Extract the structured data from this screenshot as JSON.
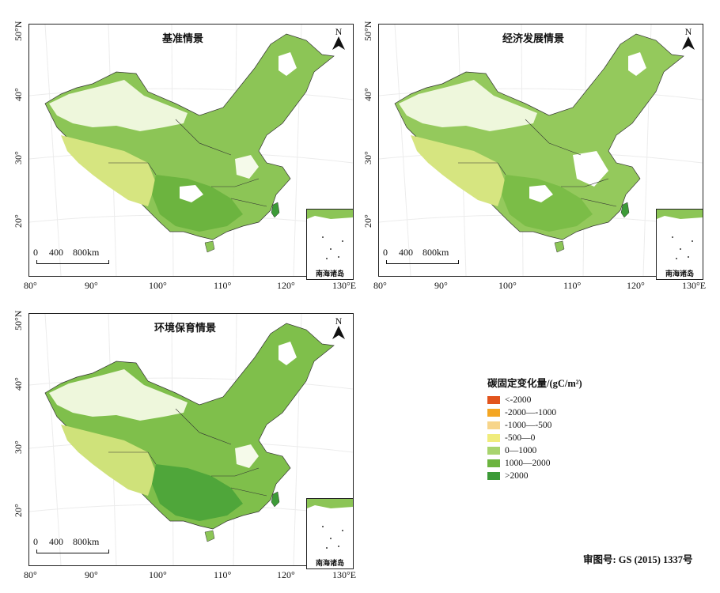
{
  "panels": [
    {
      "title": "基准情景"
    },
    {
      "title": "经济发展情景"
    },
    {
      "title": "环境保育情景"
    }
  ],
  "map_common": {
    "x_ticks": [
      "80°",
      "90°",
      "100°",
      "110°",
      "120°",
      "130°E"
    ],
    "y_ticks": [
      "50°N",
      "40°",
      "30°",
      "20°"
    ],
    "north_label": "N",
    "scale_labels": [
      "0",
      "400",
      "800km"
    ],
    "inset_label": "南海诸岛"
  },
  "legend": {
    "title": "碳固定变化量/(gC/m²)",
    "items": [
      {
        "label": "<-2000",
        "color": "#e2541d"
      },
      {
        "label": "-2000—-1000",
        "color": "#f4a623"
      },
      {
        "label": "-1000—-500",
        "color": "#f7d58a"
      },
      {
        "label": "-500—0",
        "color": "#f0ec7c"
      },
      {
        "label": "0—1000",
        "color": "#a8d46e"
      },
      {
        "label": "1000—2000",
        "color": "#6cb43f"
      },
      {
        "label": ">2000",
        "color": "#3c9a37"
      }
    ]
  },
  "approval_number": "审图号: GS (2015) 1337号"
}
